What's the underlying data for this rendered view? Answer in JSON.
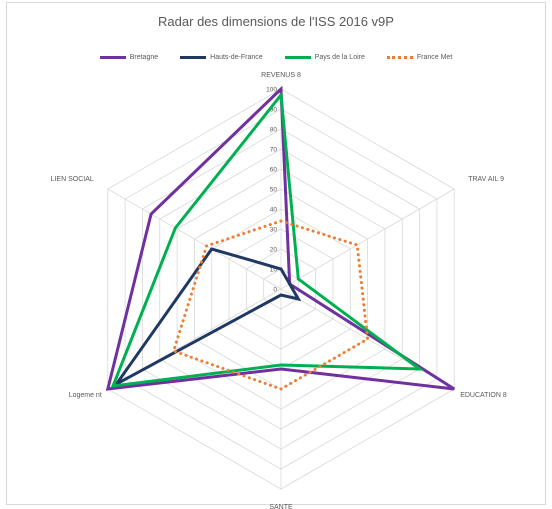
{
  "chart_data": {
    "type": "radar",
    "title": "Radar des dimensions de l'ISS 2016 v9P",
    "axes": [
      "REVENUS 8",
      "TRAV AIL 9",
      "EDUCATION 8",
      "SANTE",
      "Logeme nt",
      "LIEN SOCIAL"
    ],
    "rlim": [
      0,
      100
    ],
    "ticks": [
      "0",
      "10",
      "20",
      "30",
      "40",
      "50",
      "60",
      "70",
      "80",
      "90",
      "100"
    ],
    "grid": true,
    "legend_position": "top",
    "series": [
      {
        "name": "Bretagne",
        "color": "#7030a0",
        "style": "solid",
        "values": [
          100,
          5,
          100,
          40,
          100,
          75
        ]
      },
      {
        "name": "Hauts-de-France",
        "color": "#203864",
        "style": "solid",
        "values": [
          10,
          5,
          10,
          3,
          95,
          40
        ]
      },
      {
        "name": "Pays de la Loire",
        "color": "#00b050",
        "style": "solid",
        "values": [
          97,
          10,
          80,
          38,
          97,
          61
        ]
      },
      {
        "name": "France Met",
        "color": "#ed7d31",
        "style": "dotted",
        "values": [
          34,
          44,
          50,
          50,
          62,
          43
        ]
      }
    ]
  }
}
